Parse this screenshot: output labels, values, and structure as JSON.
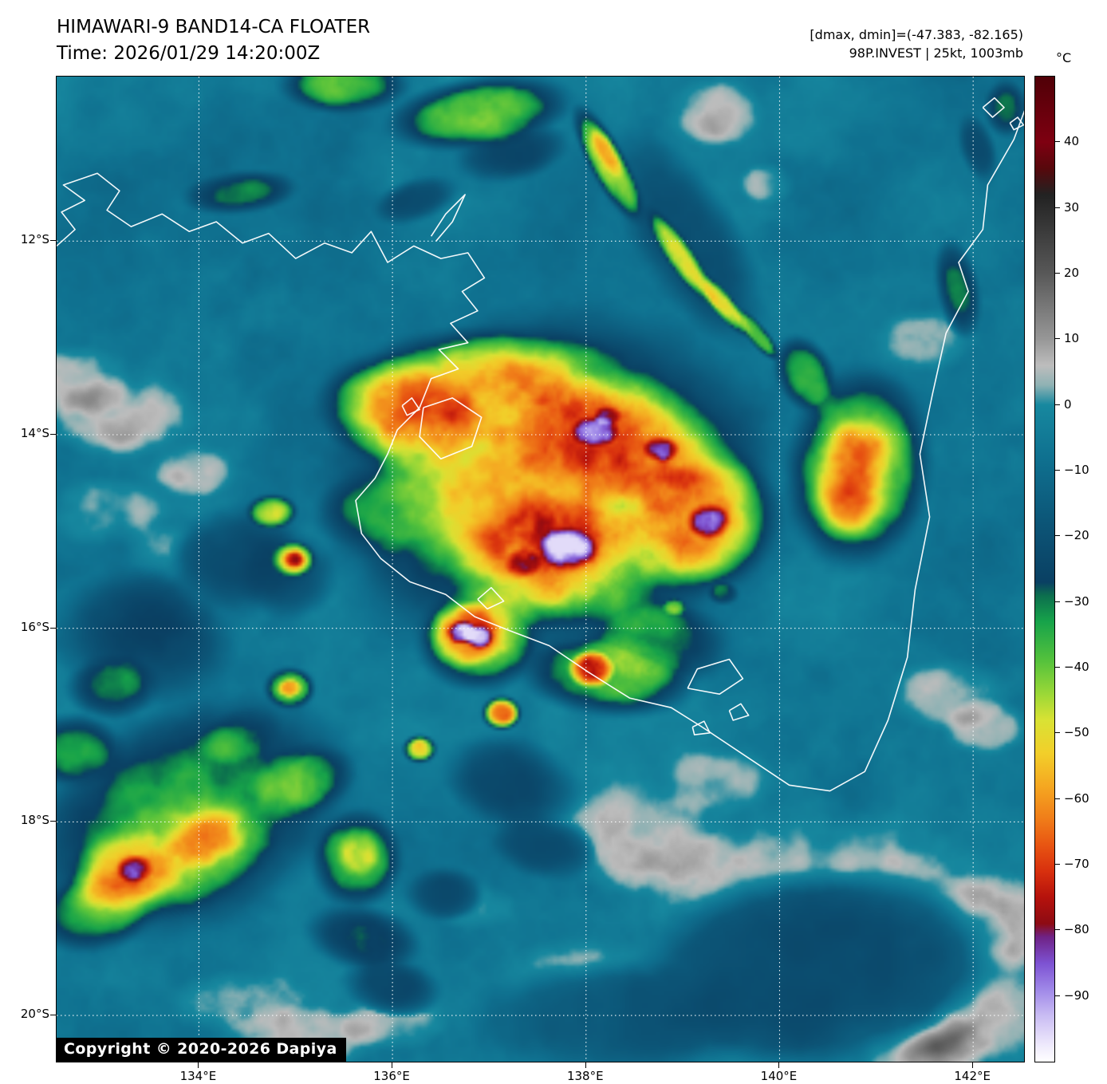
{
  "header": {
    "title": "HIMAWARI-9 BAND14-CA FLOATER",
    "time_line": "Time: 2026/01/29 14:20:00Z",
    "dminmax_line": "[dmax, dmin]=(-47.383, -82.165)",
    "storm_line": "98P.INVEST | 25kt, 1003mb"
  },
  "map": {
    "lat_ticks": [
      {
        "label": "12°S",
        "value": 12
      },
      {
        "label": "14°S",
        "value": 14
      },
      {
        "label": "16°S",
        "value": 16
      },
      {
        "label": "18°S",
        "value": 18
      },
      {
        "label": "20°S",
        "value": 20
      }
    ],
    "lon_ticks": [
      {
        "label": "134°E",
        "value": 134
      },
      {
        "label": "136°E",
        "value": 136
      },
      {
        "label": "138°E",
        "value": 138
      },
      {
        "label": "140°E",
        "value": 140
      },
      {
        "label": "142°E",
        "value": 142
      }
    ],
    "copyright": "Copyright © 2020-2026 Dapiya"
  },
  "colorbar": {
    "unit": "°C",
    "tick_labels": [
      "40",
      "30",
      "20",
      "10",
      "0",
      "−10",
      "−20",
      "−30",
      "−40",
      "−50",
      "−60",
      "−70",
      "−80",
      "−90"
    ],
    "tick_values": [
      40,
      30,
      20,
      10,
      0,
      -10,
      -20,
      -30,
      -40,
      -50,
      -60,
      -70,
      -80,
      -90
    ],
    "range": [
      50,
      -100
    ],
    "stops": [
      [
        50,
        "#500007"
      ],
      [
        40,
        "#7e0011"
      ],
      [
        36,
        "#57080c"
      ],
      [
        32,
        "#222222"
      ],
      [
        20,
        "#585858"
      ],
      [
        10,
        "#979797"
      ],
      [
        6,
        "#bdbdbd"
      ],
      [
        3,
        "#8fb2b4"
      ],
      [
        0,
        "#17889f"
      ],
      [
        -8,
        "#0f7190"
      ],
      [
        -18,
        "#0c5577"
      ],
      [
        -27,
        "#0a4063"
      ],
      [
        -29,
        "#0c6e4e"
      ],
      [
        -33,
        "#17a34a"
      ],
      [
        -39,
        "#55c23c"
      ],
      [
        -44,
        "#9bd837"
      ],
      [
        -48,
        "#d9e234"
      ],
      [
        -53,
        "#f2cf2a"
      ],
      [
        -58,
        "#f5a821"
      ],
      [
        -63,
        "#f07d19"
      ],
      [
        -67,
        "#e85512"
      ],
      [
        -71,
        "#d8300e"
      ],
      [
        -75,
        "#b5120c"
      ],
      [
        -79,
        "#8d0b13"
      ],
      [
        -81,
        "#6f2285"
      ],
      [
        -85,
        "#7d52d2"
      ],
      [
        -89,
        "#9f88e8"
      ],
      [
        -93,
        "#c9bcf3"
      ],
      [
        -97,
        "#ebe5fb"
      ],
      [
        -100,
        "#ffffff"
      ]
    ]
  },
  "colors": {
    "ocean_teal": "#0f7190",
    "coastline": "#ffffff",
    "grid": "#ffffff",
    "copyright_bg": "#000000"
  }
}
